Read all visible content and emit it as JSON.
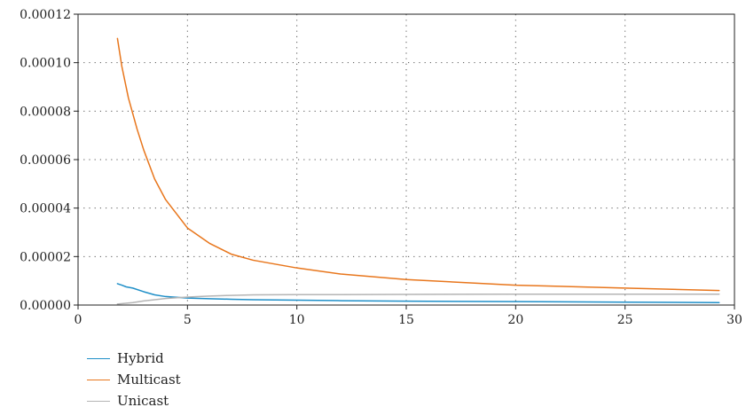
{
  "chart_data": {
    "type": "line",
    "title": "",
    "xlabel": "",
    "ylabel": "",
    "xlim": [
      0,
      30
    ],
    "ylim": [
      0,
      0.00012
    ],
    "xticks": [
      0,
      5,
      10,
      15,
      20,
      25,
      30
    ],
    "xtick_labels": [
      "0",
      "5",
      "10",
      "15",
      "20",
      "25",
      "30"
    ],
    "yticks": [
      0,
      2e-05,
      4e-05,
      6e-05,
      8e-05,
      0.0001,
      0.00012
    ],
    "ytick_labels": [
      "0.00000",
      "0.00002",
      "0.00004",
      "0.00006",
      "0.00008",
      "0.00010",
      "0.00012"
    ],
    "grid": true,
    "legend_position": "bottom-left",
    "series": [
      {
        "name": "Hybrid",
        "color": "#1f8fc8",
        "x": [
          1.8,
          2.0,
          2.2,
          2.5,
          3.0,
          3.5,
          4.0,
          5,
          6,
          7,
          8,
          10,
          12,
          15,
          20,
          25,
          29.3
        ],
        "y": [
          8.8e-06,
          8.2e-06,
          7.5e-06,
          7e-06,
          5.5e-06,
          4.2e-06,
          3.5e-06,
          2.9e-06,
          2.6e-06,
          2.4e-06,
          2.2e-06,
          2e-06,
          1.8e-06,
          1.6e-06,
          1.4e-06,
          1.2e-06,
          1e-06
        ]
      },
      {
        "name": "Multicast",
        "color": "#e8761c",
        "x": [
          1.8,
          2.0,
          2.3,
          2.7,
          3.0,
          3.5,
          4.0,
          5,
          6,
          7,
          8,
          10,
          12,
          15,
          20,
          25,
          29.3
        ],
        "y": [
          0.00011,
          9.85e-05,
          8.55e-05,
          7.25e-05,
          6.4e-05,
          5.2e-05,
          4.35e-05,
          3.18e-05,
          2.55e-05,
          2.1e-05,
          1.85e-05,
          1.53e-05,
          1.28e-05,
          1.05e-05,
          8.2e-06,
          7e-06,
          6e-06
        ]
      },
      {
        "name": "Unicast",
        "color": "#b4b4b4",
        "x": [
          1.8,
          2.5,
          3.0,
          4.0,
          5,
          6,
          7,
          8,
          10,
          12,
          15,
          20,
          25,
          29.3
        ],
        "y": [
          4e-07,
          1e-06,
          1.7e-06,
          2.7e-06,
          3.3e-06,
          3.7e-06,
          4e-06,
          4.2e-06,
          4.3e-06,
          4.3e-06,
          4.4e-06,
          4.5e-06,
          4.5e-06,
          4.5e-06
        ]
      }
    ]
  }
}
